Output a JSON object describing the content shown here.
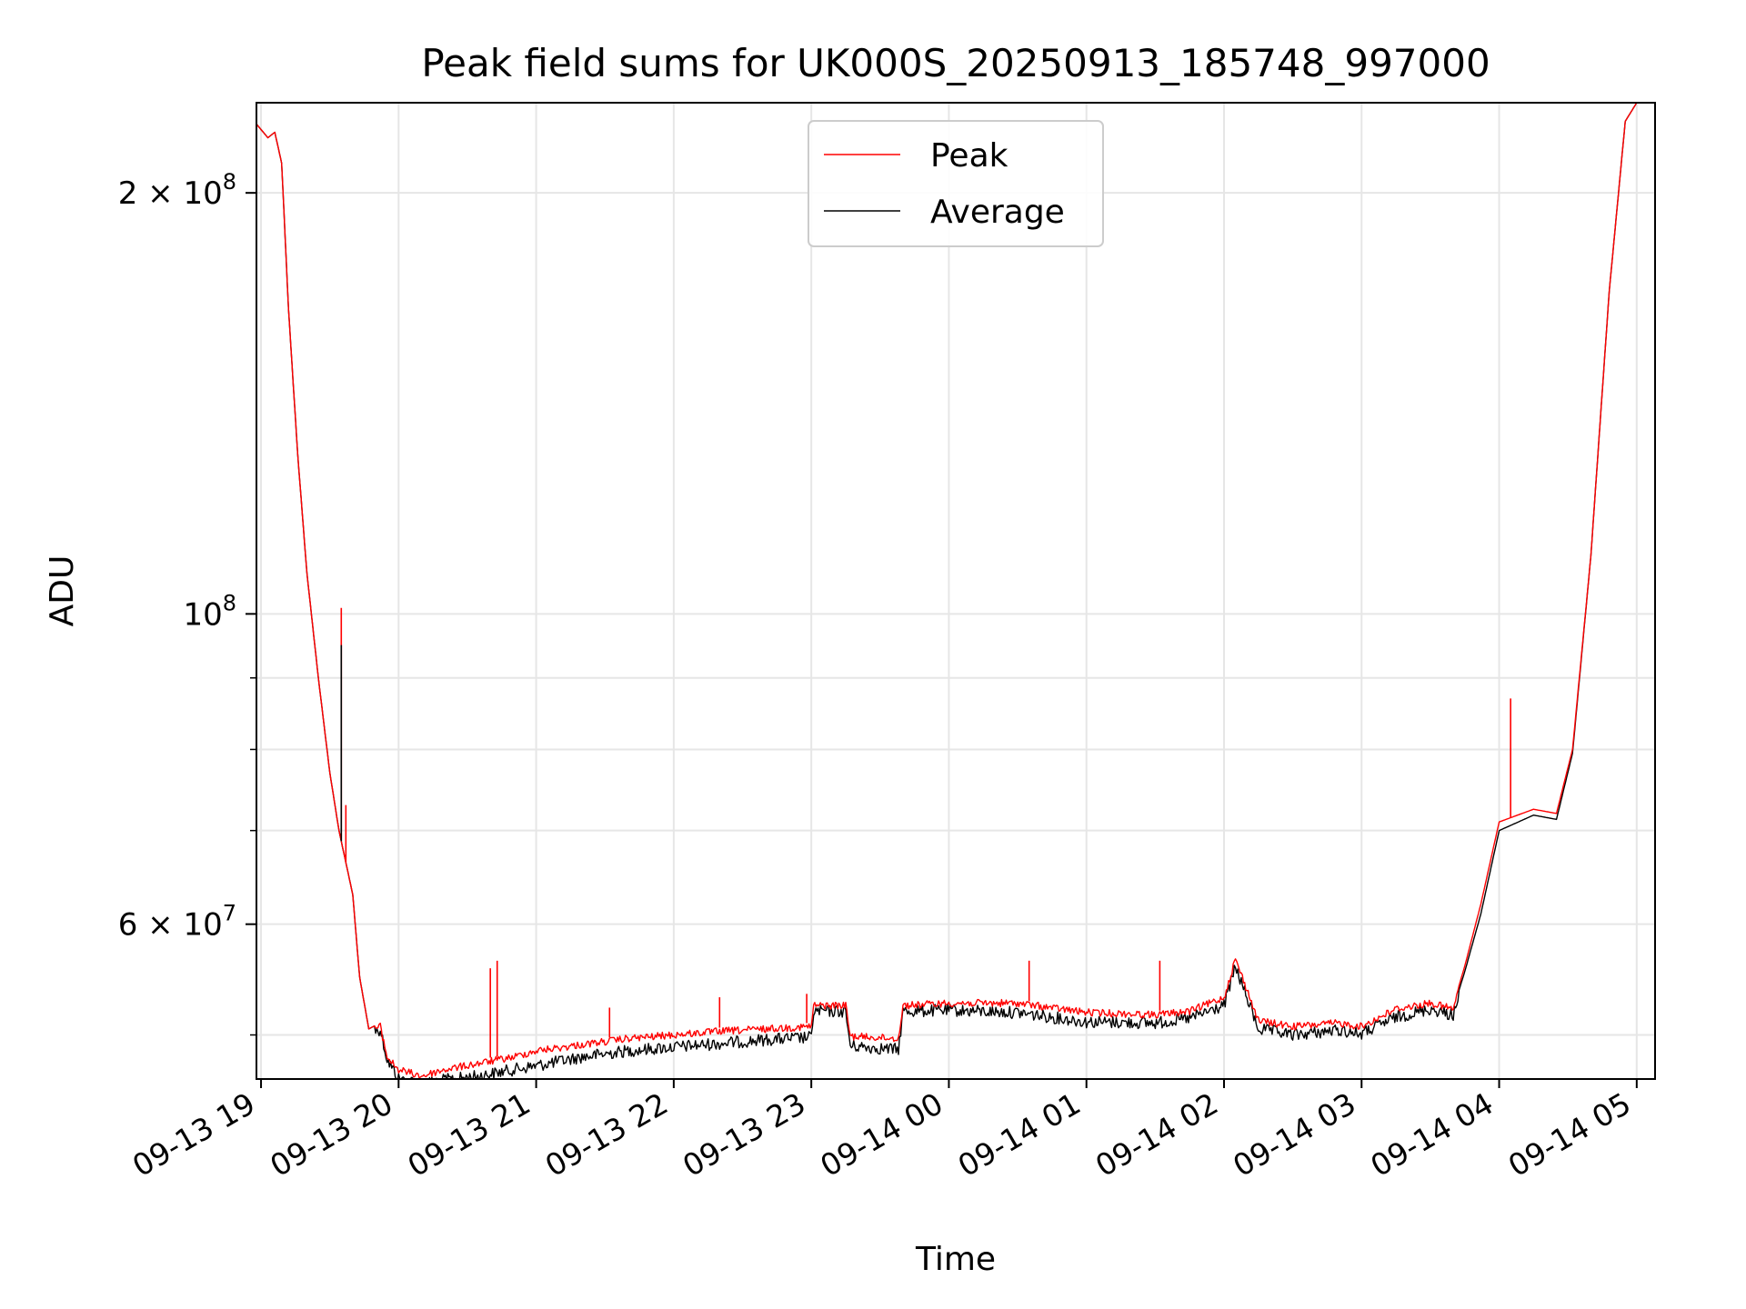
{
  "chart_data": {
    "type": "line",
    "title": "Peak field sums for UK000S_20250913_185748_997000",
    "xlabel": "Time",
    "ylabel": "ADU",
    "y_scale": "log",
    "ylim": [
      46500000,
      232000000
    ],
    "xlim": [
      "2025-09-13 18:58",
      "2025-09-14 05:08"
    ],
    "x_ticks": [
      "09-13 19",
      "09-13 20",
      "09-13 21",
      "09-13 22",
      "09-13 23",
      "09-14 00",
      "09-14 01",
      "09-14 02",
      "09-14 03",
      "09-14 04",
      "09-14 05"
    ],
    "y_major_ticks": [
      {
        "value": 100000000,
        "base": "10",
        "exp": "8",
        "coef": ""
      },
      {
        "value": 60000000,
        "base": "10",
        "exp": "7",
        "coef": "6"
      },
      {
        "value": 200000000,
        "base": "10",
        "exp": "8",
        "coef": "2"
      }
    ],
    "y_minor_ticks": [
      50000000,
      70000000,
      80000000,
      90000000,
      300000000
    ],
    "grid": true,
    "legend_position": "top-center",
    "series": [
      {
        "name": "Peak",
        "color": "#ff0000",
        "points": [
          [
            "2025-09-13 18:58",
            224000000
          ],
          [
            "2025-09-13 19:03",
            219000000
          ],
          [
            "2025-09-13 19:06",
            221000000
          ],
          [
            "2025-09-13 19:09",
            210000000
          ],
          [
            "2025-09-13 19:12",
            165000000
          ],
          [
            "2025-09-13 19:16",
            130000000
          ],
          [
            "2025-09-13 19:20",
            107000000
          ],
          [
            "2025-09-13 19:25",
            90000000
          ],
          [
            "2025-09-13 19:30",
            77000000
          ],
          [
            "2025-09-13 19:34",
            70000000
          ],
          [
            "2025-09-13 19:40",
            63000000
          ],
          [
            "2025-09-13 19:43",
            55000000
          ],
          [
            "2025-09-13 19:47",
            50500000
          ],
          [
            "2025-09-13 19:52",
            51000000
          ],
          [
            "2025-09-13 19:55",
            48500000
          ],
          [
            "2025-09-13 20:00",
            47500000
          ],
          [
            "2025-09-13 20:10",
            47000000
          ],
          [
            "2025-09-13 20:20",
            47500000
          ],
          [
            "2025-09-13 20:35",
            48000000
          ],
          [
            "2025-09-13 20:50",
            48500000
          ],
          [
            "2025-09-13 21:00",
            49000000
          ],
          [
            "2025-09-13 21:20",
            49500000
          ],
          [
            "2025-09-13 21:40",
            50000000
          ],
          [
            "2025-09-13 22:00",
            50300000
          ],
          [
            "2025-09-13 22:20",
            50600000
          ],
          [
            "2025-09-13 22:40",
            50800000
          ],
          [
            "2025-09-13 23:00",
            51000000
          ],
          [
            "2025-09-13 23:01",
            52800000
          ],
          [
            "2025-09-13 23:15",
            52800000
          ],
          [
            "2025-09-13 23:17",
            50200000
          ],
          [
            "2025-09-13 23:38",
            50000000
          ],
          [
            "2025-09-13 23:40",
            52800000
          ],
          [
            "2025-09-14 00:00",
            53000000
          ],
          [
            "2025-09-14 00:30",
            53000000
          ],
          [
            "2025-09-14 01:00",
            52200000
          ],
          [
            "2025-09-14 01:30",
            52000000
          ],
          [
            "2025-09-14 01:45",
            52300000
          ],
          [
            "2025-09-14 02:00",
            53500000
          ],
          [
            "2025-09-14 02:05",
            57000000
          ],
          [
            "2025-09-14 02:15",
            51500000
          ],
          [
            "2025-09-14 02:30",
            51000000
          ],
          [
            "2025-09-14 02:50",
            51300000
          ],
          [
            "2025-09-14 03:00",
            51000000
          ],
          [
            "2025-09-14 03:15",
            52500000
          ],
          [
            "2025-09-14 03:30",
            53000000
          ],
          [
            "2025-09-14 03:40",
            52500000
          ],
          [
            "2025-09-14 03:45",
            56000000
          ],
          [
            "2025-09-14 03:52",
            62000000
          ],
          [
            "2025-09-14 04:00",
            71000000
          ],
          [
            "2025-09-14 04:15",
            72500000
          ],
          [
            "2025-09-14 04:25",
            72000000
          ],
          [
            "2025-09-14 04:32",
            80000000
          ],
          [
            "2025-09-14 04:40",
            110000000
          ],
          [
            "2025-09-14 04:48",
            170000000
          ],
          [
            "2025-09-14 04:55",
            225000000
          ],
          [
            "2025-09-14 05:00",
            232000000
          ]
        ]
      },
      {
        "name": "Average",
        "color": "#000000",
        "points": [
          [
            "2025-09-13 18:58",
            224000000
          ],
          [
            "2025-09-13 19:03",
            219000000
          ],
          [
            "2025-09-13 19:06",
            221000000
          ],
          [
            "2025-09-13 19:09",
            210000000
          ],
          [
            "2025-09-13 19:12",
            165000000
          ],
          [
            "2025-09-13 19:16",
            130000000
          ],
          [
            "2025-09-13 19:20",
            107000000
          ],
          [
            "2025-09-13 19:25",
            90000000
          ],
          [
            "2025-09-13 19:30",
            77000000
          ],
          [
            "2025-09-13 19:34",
            70000000
          ],
          [
            "2025-09-13 19:40",
            63000000
          ],
          [
            "2025-09-13 19:43",
            55000000
          ],
          [
            "2025-09-13 19:47",
            50500000
          ],
          [
            "2025-09-13 19:52",
            51000000
          ],
          [
            "2025-09-13 19:55",
            48500000
          ],
          [
            "2025-09-13 20:00",
            47000000
          ],
          [
            "2025-09-13 20:10",
            46600000
          ],
          [
            "2025-09-13 20:20",
            46900000
          ],
          [
            "2025-09-13 20:35",
            47200000
          ],
          [
            "2025-09-13 20:50",
            47700000
          ],
          [
            "2025-09-13 21:00",
            48000000
          ],
          [
            "2025-09-13 21:20",
            48700000
          ],
          [
            "2025-09-13 21:40",
            49200000
          ],
          [
            "2025-09-13 22:00",
            49500000
          ],
          [
            "2025-09-13 22:20",
            49800000
          ],
          [
            "2025-09-13 22:40",
            50100000
          ],
          [
            "2025-09-13 23:00",
            50300000
          ],
          [
            "2025-09-13 23:01",
            52500000
          ],
          [
            "2025-09-13 23:15",
            52500000
          ],
          [
            "2025-09-13 23:17",
            49600000
          ],
          [
            "2025-09-13 23:38",
            49300000
          ],
          [
            "2025-09-13 23:40",
            52500000
          ],
          [
            "2025-09-14 00:00",
            52600000
          ],
          [
            "2025-09-14 00:30",
            52400000
          ],
          [
            "2025-09-14 01:00",
            51600000
          ],
          [
            "2025-09-14 01:30",
            51500000
          ],
          [
            "2025-09-14 01:45",
            51900000
          ],
          [
            "2025-09-14 02:00",
            53000000
          ],
          [
            "2025-09-14 02:05",
            56500000
          ],
          [
            "2025-09-14 02:15",
            51000000
          ],
          [
            "2025-09-14 02:30",
            50500000
          ],
          [
            "2025-09-14 02:50",
            50900000
          ],
          [
            "2025-09-14 03:00",
            50600000
          ],
          [
            "2025-09-14 03:15",
            52000000
          ],
          [
            "2025-09-14 03:30",
            52700000
          ],
          [
            "2025-09-14 03:40",
            52200000
          ],
          [
            "2025-09-14 03:45",
            55500000
          ],
          [
            "2025-09-14 03:52",
            61000000
          ],
          [
            "2025-09-14 04:00",
            70000000
          ],
          [
            "2025-09-14 04:15",
            71800000
          ],
          [
            "2025-09-14 04:25",
            71300000
          ],
          [
            "2025-09-14 04:32",
            79500000
          ],
          [
            "2025-09-14 04:40",
            110000000
          ],
          [
            "2025-09-14 04:48",
            170000000
          ],
          [
            "2025-09-14 04:55",
            225000000
          ],
          [
            "2025-09-14 05:00",
            232000000
          ]
        ]
      }
    ],
    "spikes": [
      {
        "series": "Peak",
        "time": "2025-09-13 19:35",
        "value": 101000000
      },
      {
        "series": "Peak",
        "time": "2025-09-13 19:37",
        "value": 73000000
      },
      {
        "series": "Peak",
        "time": "2025-09-13 20:40",
        "value": 55800000
      },
      {
        "series": "Peak",
        "time": "2025-09-13 20:43",
        "value": 56500000
      },
      {
        "series": "Peak",
        "time": "2025-09-13 21:32",
        "value": 52300000
      },
      {
        "series": "Peak",
        "time": "2025-09-13 22:20",
        "value": 53200000
      },
      {
        "series": "Peak",
        "time": "2025-09-13 22:58",
        "value": 53500000
      },
      {
        "series": "Peak",
        "time": "2025-09-14 00:35",
        "value": 56500000
      },
      {
        "series": "Peak",
        "time": "2025-09-14 01:32",
        "value": 56500000
      },
      {
        "series": "Peak",
        "time": "2025-09-14 04:05",
        "value": 87000000
      },
      {
        "series": "Average",
        "time": "2025-09-13 19:35",
        "value": 95000000
      }
    ]
  }
}
